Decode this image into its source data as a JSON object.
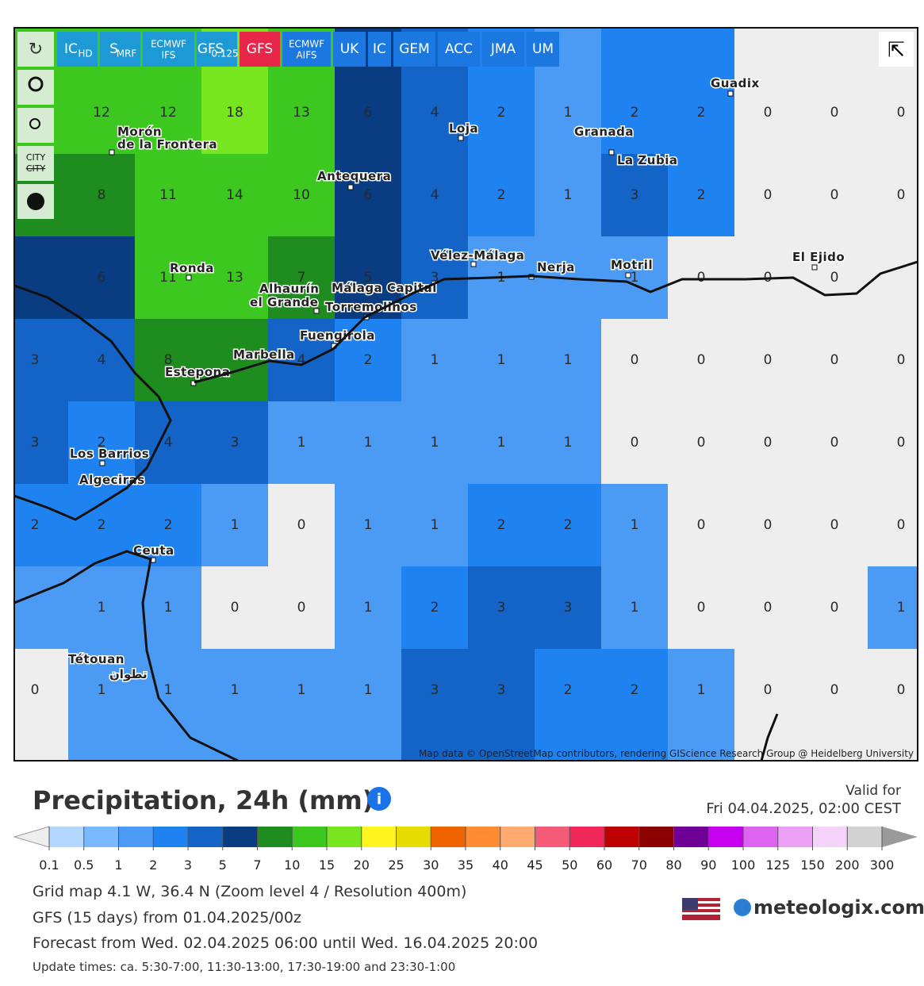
{
  "toolbar": {
    "models": [
      {
        "label": "IC",
        "sub": "HD"
      },
      {
        "label": "S",
        "sub": "MRF"
      },
      {
        "label": "ECMWF",
        "sub": "IFS"
      },
      {
        "label": "GFS",
        "sub": "0.125"
      },
      {
        "label": "GFS"
      },
      {
        "label": "ECMWF",
        "sub": "AIFS"
      },
      {
        "label": "UK"
      },
      {
        "label": "IC"
      },
      {
        "label": "GEM"
      },
      {
        "label": "ACC"
      },
      {
        "label": "JMA"
      },
      {
        "label": "UM"
      }
    ],
    "active": 4,
    "city": [
      "CITY",
      "CITY"
    ]
  },
  "map": {
    "grid": [
      [
        null,
        12,
        12,
        18,
        13,
        6,
        4,
        2,
        1,
        2,
        2,
        0,
        0,
        0
      ],
      [
        null,
        8,
        11,
        14,
        10,
        6,
        4,
        2,
        1,
        3,
        2,
        0,
        0,
        0
      ],
      [
        null,
        6,
        11,
        13,
        7,
        5,
        3,
        1,
        null,
        1,
        0,
        0,
        0,
        null
      ],
      [
        3,
        4,
        8,
        null,
        4,
        2,
        1,
        1,
        1,
        0,
        0,
        0,
        0,
        0
      ],
      [
        3,
        2,
        4,
        3,
        1,
        1,
        1,
        1,
        1,
        0,
        0,
        0,
        0,
        0
      ],
      [
        2,
        2,
        2,
        1,
        0,
        1,
        1,
        2,
        2,
        1,
        0,
        0,
        0,
        0
      ],
      [
        null,
        1,
        1,
        0,
        0,
        1,
        2,
        3,
        3,
        1,
        0,
        0,
        0,
        1
      ],
      [
        0,
        1,
        1,
        1,
        1,
        1,
        3,
        3,
        2,
        2,
        1,
        0,
        0,
        0
      ]
    ],
    "places": [
      "Guadix",
      "Loja",
      "Granada",
      "La Zubia",
      "Morón",
      "de la Frontera",
      "Antequera",
      "Ronda",
      "Alhaurín",
      "el Grande",
      "Málaga Capital",
      "Torremolinos",
      "Vélez-Málaga",
      "Nerja",
      "Motril",
      "El Ejido",
      "Fuengirola",
      "Marbella",
      "Estepona",
      "Los Barrios",
      "Algeciras",
      "Ceuta",
      "Tétouan",
      "تطوان"
    ],
    "attribution": "Map data © OpenStreetMap contributors, rendering GIScience Research Group @ Heidelberg University"
  },
  "legend": {
    "title": "Precipitation, 24h (mm)",
    "labels": [
      0.1,
      0.5,
      1,
      2,
      3,
      5,
      7,
      10,
      15,
      20,
      25,
      30,
      35,
      40,
      45,
      50,
      60,
      70,
      80,
      90,
      100,
      125,
      150,
      200,
      300
    ],
    "colors": [
      "#b4d7ff",
      "#78b9ff",
      "#4b9bf5",
      "#1e82f0",
      "#1464c8",
      "#0a3c82",
      "#1e8c1e",
      "#3cc81e",
      "#78e61e",
      "#fff51e",
      "#e6dc00",
      "#f06400",
      "#ff8c32",
      "#ffaa6e",
      "#f55a78",
      "#f0285a",
      "#be0000",
      "#8c0000",
      "#6e0096",
      "#c800f0",
      "#dc64f0",
      "#eba0f5",
      "#f5d2fa",
      "#d2d2d2"
    ],
    "under_color": "#eeeeee",
    "over_color": "#9a9a9a"
  },
  "valid": {
    "label": "Valid for",
    "time": "Fri 04.04.2025, 02:00 CEST"
  },
  "info": [
    "Grid map 4.1 W, 36.4 N (Zoom level 4 / Resolution 400m)",
    "GFS (15 days) from 01.04.2025/00z",
    "Forecast from Wed. 02.04.2025 06:00 until Wed. 16.04.2025 20:00",
    "Update times: ca. 5:30-7:00, 11:30-13:00, 17:30-19:00 and 23:30-1:00"
  ],
  "brand": "meteologix.com"
}
